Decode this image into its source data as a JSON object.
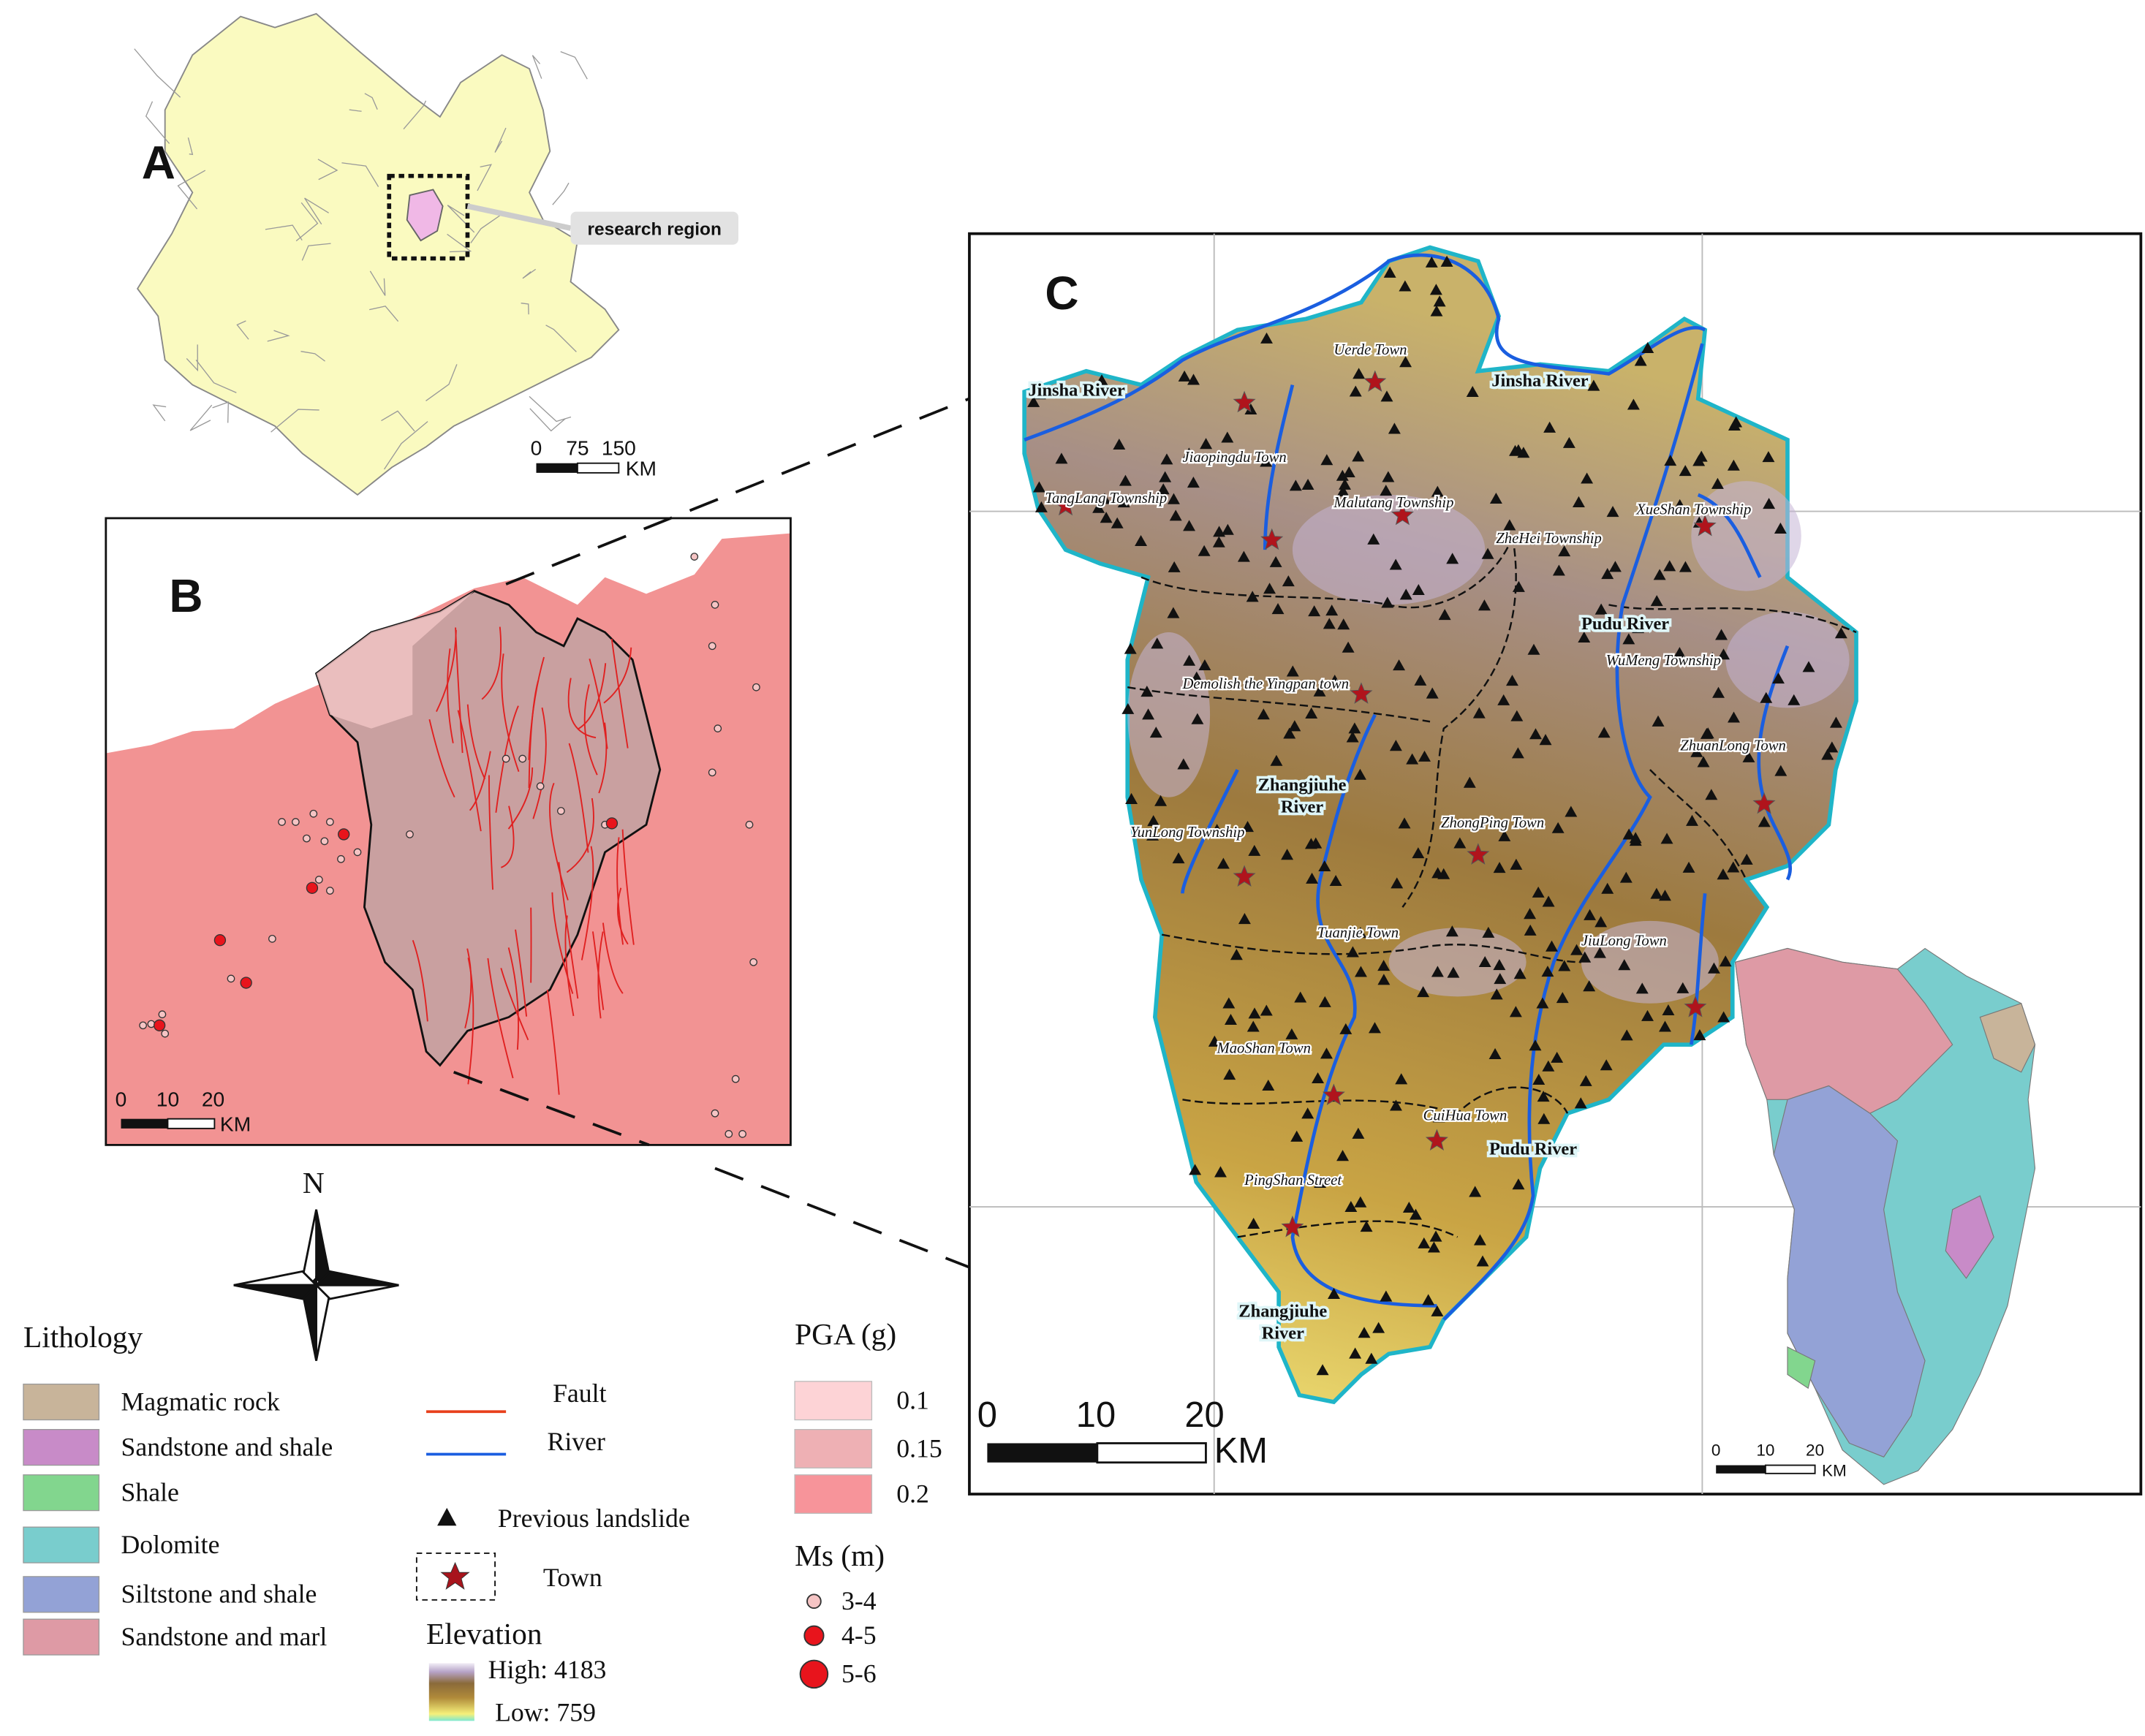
{
  "panel_a": {
    "label": "A",
    "callout": "research region",
    "scale_ticks": [
      "0",
      "75",
      "150"
    ],
    "scale_unit": "KM"
  },
  "panel_b": {
    "label": "B",
    "scale_ticks": [
      "0",
      "10",
      "20"
    ],
    "scale_unit": "KM"
  },
  "panel_c": {
    "label": "C",
    "scale_ticks": [
      "0",
      "10",
      "20"
    ],
    "scale_unit": "KM",
    "inset_scale_ticks": [
      "0",
      "10",
      "20"
    ],
    "inset_scale_unit": "KM",
    "rivers": [
      {
        "lines": [
          "Jinsha River"
        ]
      },
      {
        "lines": [
          "Jinsha River"
        ]
      },
      {
        "lines": [
          "Pudu River"
        ]
      },
      {
        "lines": [
          "Pudu River"
        ]
      },
      {
        "lines": [
          "Zhangjiuhe",
          "River"
        ]
      },
      {
        "lines": [
          "Zhangjiuhe",
          "River"
        ]
      }
    ],
    "towns": [
      "Uerde Town",
      "Jiaopingdu Town",
      "TangLang Township",
      "Malutang Township",
      "ZheHei Township",
      "XueShan Township",
      "WuMeng Township",
      "Demolish the Yingpan town",
      "ZhuanLong Town",
      "ZhongPing Town",
      "YunLong Township",
      "Tuanjie Town",
      "JiuLong Town",
      "MaoShan Town",
      "CuiHua Town",
      "PingShan Street"
    ]
  },
  "north": "N",
  "legend": {
    "lithology": {
      "title": "Lithology",
      "items": [
        {
          "label": "Magmatic rock",
          "color": "#c8b49a"
        },
        {
          "label": "Sandstone and shale",
          "color": "#c88bc8"
        },
        {
          "label": "Shale",
          "color": "#82d68e"
        },
        {
          "label": "Dolomite",
          "color": "#79cdcd"
        },
        {
          "label": "Siltstone and shale",
          "color": "#93a2d6"
        },
        {
          "label": "Sandstone and marl",
          "color": "#de9aa5"
        }
      ]
    },
    "fault": "Fault",
    "river": "River",
    "landslide": "Previous landslide",
    "town": "Town",
    "elevation": {
      "title": "Elevation",
      "high": "High: 4183",
      "low": "Low: 759"
    },
    "pga": {
      "title": "PGA (g)",
      "items": [
        {
          "label": "0.1",
          "color": "#fdd3d6"
        },
        {
          "label": "0.15",
          "color": "#eeb0b4"
        },
        {
          "label": "0.2",
          "color": "#f7949a"
        }
      ]
    },
    "ms": {
      "title": "Ms (m)",
      "items": [
        "3-4",
        "4-5",
        "5-6"
      ]
    }
  }
}
